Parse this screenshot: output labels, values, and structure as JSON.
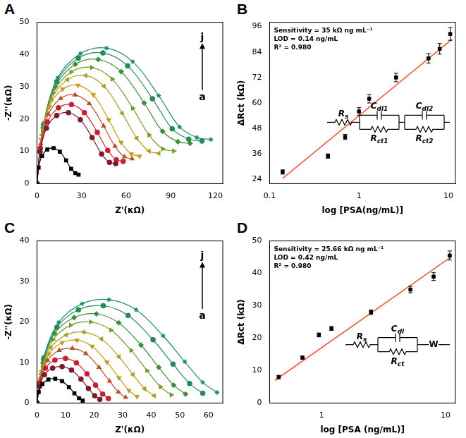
{
  "chart_data": [
    {
      "panel": "A",
      "type": "line",
      "x_label": "Z'(κΩ)",
      "y_label": "-Z''(κΩ)",
      "xlim": [
        0,
        125
      ],
      "xticks": [
        0,
        30,
        60,
        90,
        120
      ],
      "ylim": [
        0,
        50
      ],
      "yticks": [
        0,
        10,
        20,
        30,
        40,
        50
      ],
      "grid": false,
      "line_style": "solid",
      "annotations": {
        "arrow_start": "a",
        "arrow_end": "j"
      },
      "series": [
        {
          "color": "#000000",
          "marker": "square",
          "x": [
            0,
            1.1,
            3.4,
            7,
            11.2,
            15.4,
            19.6,
            23,
            25.8,
            28
          ],
          "values": [
            0,
            5,
            8.6,
            10.6,
            11,
            9.9,
            7.2,
            4.6,
            3.3,
            2.8
          ]
        },
        {
          "color": "#7b1c2e",
          "marker": "circle",
          "x": [
            0,
            2.1,
            6.4,
            13.3,
            21.2,
            29.2,
            37.1,
            43.5,
            48.8,
            53
          ],
          "values": [
            0,
            9.9,
            17.2,
            21.1,
            22,
            19.8,
            14.3,
            9.2,
            6.6,
            6.2
          ]
        },
        {
          "color": "#c8202f",
          "marker": "circle",
          "x": [
            0,
            2.3,
            7,
            14.5,
            23.2,
            31.9,
            40.6,
            47.6,
            53.4,
            58
          ],
          "values": [
            0,
            11,
            19.1,
            23.5,
            24.5,
            22,
            15.9,
            10.3,
            7.4,
            6.9
          ]
        },
        {
          "color": "#b5502a",
          "marker": "triangle",
          "x": [
            0,
            2.6,
            7.7,
            16,
            25.6,
            35.2,
            44.8,
            52.5,
            58.9,
            64
          ],
          "values": [
            0,
            12.4,
            21.5,
            26.4,
            27.5,
            24.8,
            17.9,
            11.6,
            8.3,
            7.7
          ]
        },
        {
          "color": "#c49a1c",
          "marker": "triangle_down",
          "x": [
            0,
            2.8,
            8.3,
            17.3,
            27.6,
            38,
            48.3,
            56.6,
            63.5,
            69
          ],
          "values": [
            0,
            13.7,
            23.8,
            29.3,
            30.5,
            27.5,
            19.8,
            12.8,
            9.2,
            8.5
          ]
        },
        {
          "color": "#a7a020",
          "marker": "triangle_left",
          "x": [
            0,
            3.3,
            9.8,
            20.5,
            32.8,
            45.1,
            57.4,
            67.2,
            75.4,
            82
          ],
          "values": [
            0,
            15.1,
            26.1,
            32.2,
            33.5,
            30.2,
            21.8,
            14.1,
            10.1,
            9.4
          ]
        },
        {
          "color": "#6e9a2a",
          "marker": "triangle_right",
          "x": [
            0,
            3.7,
            11,
            23,
            36.8,
            50.6,
            64.4,
            75.4,
            84.6,
            92
          ],
          "values": [
            0,
            16.2,
            28.1,
            34.6,
            36,
            32.4,
            23.4,
            15.1,
            10.8,
            10.1
          ]
        },
        {
          "color": "#3f8f3a",
          "marker": "diamond",
          "x": [
            0,
            4.1,
            12.4,
            25.8,
            41.2,
            56.7,
            72.1,
            84.5,
            94.8,
            103
          ],
          "values": [
            0,
            17.3,
            30,
            37,
            38.5,
            34.7,
            25,
            16.2,
            13,
            12.5
          ]
        },
        {
          "color": "#268a5a",
          "marker": "circle",
          "x": [
            0,
            4.4,
            13.3,
            27.8,
            44.4,
            61,
            77.7,
            91,
            102.1,
            111
          ],
          "values": [
            0,
            18.2,
            31.6,
            38.9,
            40.5,
            36.5,
            26.3,
            17,
            13.8,
            13.2
          ]
        },
        {
          "color": "#1f8a78",
          "marker": "star",
          "x": [
            0,
            4.7,
            14,
            29.3,
            46.8,
            64.4,
            81.9,
            95.9,
            107.6,
            117
          ],
          "values": [
            0,
            18.9,
            32.8,
            40.3,
            42,
            37.8,
            27.3,
            17.6,
            14.3,
            13.7
          ]
        }
      ]
    },
    {
      "panel": "B",
      "type": "scatter",
      "log": "x",
      "x_label": "log [PSA(ng/mL)]",
      "y_label": "ΔRct (kΩ)",
      "xlim": [
        0.1,
        12
      ],
      "xticks": [
        0.1,
        1,
        10
      ],
      "ylim": [
        22,
        98
      ],
      "yticks": [
        24,
        36,
        48,
        60,
        72,
        84,
        96
      ],
      "grid": false,
      "annotations": {
        "text": [
          "Sensitivity = 35 kΩ ng mL⁻¹",
          "LOD = 0.14 ng/mL",
          "R² = 0.980"
        ]
      },
      "circuit": [
        {
          "resistor": "Rs"
        },
        {
          "parallel": [
            "Cdl1",
            "Rct1"
          ]
        },
        {
          "parallel": [
            "Cdl2",
            "Rct2"
          ]
        }
      ],
      "series": [
        {
          "type": "scatter",
          "color": "#000000",
          "marker": "square",
          "x": [
            0.14,
            0.45,
            0.7,
            1.0,
            1.3,
            2.6,
            6,
            8,
            10.5
          ],
          "values": [
            27.5,
            35,
            44,
            56,
            62,
            72,
            81,
            85.5,
            92.5
          ],
          "errors": [
            1,
            1,
            1.2,
            1.8,
            2,
            2,
            2.2,
            2.5,
            3
          ]
        },
        {
          "type": "line",
          "color": "#f05a3c",
          "line_style": "solid",
          "x": [
            0.14,
            11
          ],
          "values": [
            24.5,
            90
          ]
        }
      ]
    },
    {
      "panel": "C",
      "type": "line",
      "x_label": "Z'(κΩ)",
      "y_label": "-Z''(κΩ)",
      "xlim": [
        0,
        65
      ],
      "xticks": [
        0,
        10,
        20,
        30,
        40,
        50,
        60
      ],
      "ylim": [
        0,
        40
      ],
      "yticks": [
        0,
        10,
        20,
        30,
        40
      ],
      "grid": false,
      "line_style": "solid",
      "annotations": {
        "arrow_start": "a",
        "arrow_end": "j"
      },
      "series": [
        {
          "color": "#000000",
          "marker": "square",
          "x": [
            0,
            0.6,
            1.9,
            4,
            6.4,
            8.8,
            11.2,
            13.1,
            14.7,
            16
          ],
          "values": [
            0,
            2.7,
            4.7,
            5.8,
            6,
            5.4,
            3.9,
            2.4,
            1.2,
            0.6
          ]
        },
        {
          "color": "#7b1c2e",
          "marker": "circle",
          "x": [
            0,
            0.9,
            2.6,
            5.5,
            8.8,
            12.1,
            15.4,
            18,
            20.2,
            22
          ],
          "values": [
            0,
            4.1,
            7,
            8.6,
            9,
            8.1,
            5.9,
            3.6,
            1.8,
            0.9
          ]
        },
        {
          "color": "#c8202f",
          "marker": "circle",
          "x": [
            0,
            1,
            3,
            6.3,
            10,
            13.8,
            17.5,
            20.5,
            23,
            25
          ],
          "values": [
            0,
            5,
            8.6,
            10.6,
            11,
            9.9,
            7.2,
            4.4,
            2.2,
            1.1
          ]
        },
        {
          "color": "#b5502a",
          "marker": "triangle",
          "x": [
            0,
            1.2,
            3.7,
            7.8,
            12.4,
            17.1,
            21.7,
            25.4,
            28.5,
            31
          ],
          "values": [
            0,
            6.1,
            10.5,
            13,
            13.5,
            12.2,
            8.8,
            5.4,
            2.7,
            1.4
          ]
        },
        {
          "color": "#c49a1c",
          "marker": "triangle_down",
          "x": [
            0,
            1.4,
            4.2,
            8.8,
            14,
            19.3,
            24.5,
            28.7,
            32.2,
            35
          ],
          "values": [
            0,
            7,
            12.1,
            14.9,
            15.5,
            14,
            10.1,
            6.2,
            3.1,
            1.6
          ]
        },
        {
          "color": "#a7a020",
          "marker": "triangle_left",
          "x": [
            0,
            1.6,
            4.9,
            10.3,
            16.4,
            22.6,
            28.7,
            33.6,
            37.7,
            41
          ],
          "values": [
            0,
            7.9,
            13.7,
            16.8,
            17.5,
            15.8,
            11.4,
            7,
            3.5,
            1.8
          ]
        },
        {
          "color": "#6e9a2a",
          "marker": "triangle_right",
          "x": [
            0,
            1.9,
            5.6,
            11.8,
            18.8,
            25.9,
            32.9,
            38.5,
            43.2,
            47
          ],
          "values": [
            0,
            9,
            15.6,
            19.2,
            20,
            18,
            13,
            8,
            4,
            2
          ]
        },
        {
          "color": "#3f8f3a",
          "marker": "diamond",
          "x": [
            0,
            2.1,
            6.2,
            13,
            20.8,
            28.6,
            36.4,
            42.6,
            47.8,
            52
          ],
          "values": [
            0,
            9.9,
            17.2,
            21.1,
            22,
            19.8,
            14.3,
            8.8,
            4.4,
            2.2
          ]
        },
        {
          "color": "#268a5a",
          "marker": "circle",
          "x": [
            0,
            2.3,
            7,
            14.5,
            23.2,
            31.9,
            40.6,
            47.6,
            53.4,
            58
          ],
          "values": [
            0,
            10.8,
            18.7,
            23,
            24,
            21.6,
            15.6,
            9.6,
            4.8,
            2.4
          ]
        },
        {
          "color": "#1f8a78",
          "marker": "star",
          "x": [
            0,
            2.5,
            7.6,
            15.8,
            25.2,
            34.7,
            44.1,
            51.7,
            58,
            63
          ],
          "values": [
            0,
            11.5,
            19.9,
            24.5,
            25.5,
            23,
            16.6,
            10.2,
            5.1,
            2.6
          ]
        }
      ]
    },
    {
      "panel": "D",
      "type": "scatter",
      "log": "x",
      "x_label": "log [PSA (ng/mL)]",
      "y_label": "ΔRct (kΩ)",
      "xlim": [
        0.38,
        12
      ],
      "xticks": [
        1,
        10
      ],
      "ylim": [
        0,
        50
      ],
      "yticks": [
        0,
        10,
        20,
        30,
        40,
        50
      ],
      "grid": false,
      "annotations": {
        "text": [
          "Sensitivity = 25.66 kΩ ng mL⁻¹",
          "LOD = 0.42 ng/mL",
          "R² = 0.980"
        ]
      },
      "circuit": [
        {
          "resistor": "Rs"
        },
        {
          "parallel": [
            "Cdl",
            "Rct"
          ]
        },
        {
          "warburg": "W"
        }
      ],
      "series": [
        {
          "type": "scatter",
          "color": "#000000",
          "marker": "square",
          "x": [
            0.45,
            0.7,
            0.95,
            1.2,
            2.5,
            5.2,
            8,
            10.8
          ],
          "values": [
            8,
            14,
            21,
            23,
            28,
            35,
            39,
            45.5
          ],
          "errors": [
            0.5,
            0.5,
            0.6,
            0.6,
            0.7,
            1,
            1.2,
            1.4
          ]
        },
        {
          "type": "line",
          "color": "#f05a3c",
          "line_style": "solid",
          "x": [
            0.42,
            11
          ],
          "values": [
            7,
            45
          ]
        }
      ]
    }
  ]
}
